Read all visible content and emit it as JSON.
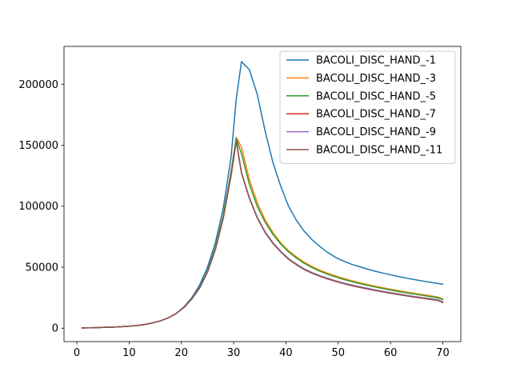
{
  "chart_data": {
    "type": "line",
    "title": "",
    "xlabel": "",
    "ylabel": "",
    "xlim": [
      -2.45,
      73.45
    ],
    "ylim": [
      -11000,
      231000
    ],
    "xticks": [
      0,
      10,
      20,
      30,
      40,
      50,
      60,
      70
    ],
    "yticks": [
      0,
      50000,
      100000,
      150000,
      200000
    ],
    "x_tick_labels": [
      "0",
      "10",
      "20",
      "30",
      "40",
      "50",
      "60",
      "70"
    ],
    "y_tick_labels": [
      "0",
      "50000",
      "100000",
      "150000",
      "200000"
    ],
    "grid": false,
    "legend_position": "upper right",
    "x": [
      1,
      2.5,
      4,
      5.5,
      7,
      8.5,
      10,
      11.5,
      13,
      14.5,
      16,
      17.5,
      19,
      20.5,
      22,
      23.5,
      25,
      26.5,
      28,
      29.5,
      30.5,
      31.5,
      33,
      34.5,
      36,
      37.5,
      39,
      40.5,
      42,
      43.5,
      45,
      46.5,
      48,
      49.5,
      51,
      52.5,
      54,
      55.5,
      57,
      58.5,
      60,
      61.5,
      63,
      64.5,
      66,
      67.5,
      69,
      70
    ],
    "series": [
      {
        "name": "BACOLI_DISC_HAND_-1",
        "color": "#1f77b4",
        "values": [
          200,
          350,
          500,
          700,
          900,
          1200,
          1600,
          2200,
          3000,
          4300,
          6000,
          8500,
          12000,
          17500,
          25000,
          35500,
          50000,
          70000,
          98000,
          140000,
          188000,
          218500,
          212000,
          192000,
          162000,
          136000,
          116500,
          100000,
          88500,
          79500,
          72500,
          67000,
          62000,
          58000,
          55000,
          52500,
          50500,
          48500,
          46800,
          45200,
          43800,
          42400,
          41100,
          39900,
          38800,
          37700,
          36700,
          36000
        ]
      },
      {
        "name": "BACOLI_DISC_HAND_-3",
        "color": "#ff7f0e",
        "values": [
          200,
          350,
          500,
          700,
          900,
          1200,
          1600,
          2200,
          3000,
          4300,
          6000,
          8500,
          12000,
          17000,
          24000,
          33500,
          47000,
          66000,
          92000,
          128000,
          156500,
          148500,
          122000,
          103000,
          89000,
          78500,
          70000,
          63500,
          58500,
          54000,
          50500,
          47500,
          45000,
          42800,
          40800,
          39000,
          37400,
          35900,
          34500,
          33200,
          32000,
          30800,
          29700,
          28600,
          27600,
          26600,
          25600,
          24000
        ]
      },
      {
        "name": "BACOLI_DISC_HAND_-5",
        "color": "#2ca02c",
        "values": [
          200,
          350,
          500,
          700,
          900,
          1200,
          1600,
          2200,
          3000,
          4300,
          6000,
          8500,
          12000,
          17000,
          24000,
          33500,
          47000,
          66000,
          92000,
          128000,
          155500,
          143000,
          118000,
          100000,
          87000,
          77000,
          69000,
          62500,
          57500,
          53200,
          49700,
          46700,
          44200,
          42000,
          40000,
          38300,
          36700,
          35200,
          33800,
          32500,
          31300,
          30100,
          29000,
          28000,
          27000,
          26000,
          25000,
          23500
        ]
      },
      {
        "name": "BACOLI_DISC_HAND_-7",
        "color": "#d62728",
        "values": [
          200,
          350,
          500,
          700,
          900,
          1200,
          1600,
          2200,
          3000,
          4300,
          6000,
          8500,
          12000,
          17000,
          24000,
          33000,
          46000,
          64500,
          90000,
          125000,
          153500,
          127500,
          107000,
          91000,
          79000,
          70000,
          63000,
          57000,
          52500,
          48500,
          45500,
          43000,
          40800,
          38800,
          37000,
          35400,
          34000,
          32700,
          31400,
          30200,
          29100,
          28000,
          27000,
          26000,
          25100,
          24200,
          23300,
          21500
        ]
      },
      {
        "name": "BACOLI_DISC_HAND_-9",
        "color": "#9467bd",
        "values": [
          200,
          350,
          500,
          700,
          900,
          1200,
          1600,
          2200,
          3000,
          4300,
          6000,
          8500,
          12000,
          17000,
          24000,
          33000,
          46000,
          64500,
          90000,
          125000,
          153500,
          127500,
          107000,
          91000,
          79000,
          70000,
          63000,
          57000,
          52500,
          48500,
          45500,
          43000,
          40800,
          38800,
          37000,
          35400,
          34000,
          32700,
          31400,
          30200,
          29100,
          28000,
          27000,
          26000,
          25100,
          24200,
          23300,
          21500
        ]
      },
      {
        "name": "BACOLI_DISC_HAND_-11",
        "color": "#8c564b",
        "values": [
          200,
          350,
          500,
          700,
          900,
          1200,
          1600,
          2200,
          3000,
          4300,
          6000,
          8500,
          12000,
          17000,
          24000,
          33000,
          46000,
          64500,
          90000,
          125000,
          153500,
          127000,
          106500,
          90500,
          78500,
          69500,
          62500,
          56500,
          52000,
          48000,
          45000,
          42500,
          40300,
          38300,
          36500,
          34900,
          33500,
          32200,
          30900,
          29700,
          28600,
          27500,
          26500,
          25500,
          24600,
          23700,
          22800,
          21000
        ]
      }
    ]
  }
}
